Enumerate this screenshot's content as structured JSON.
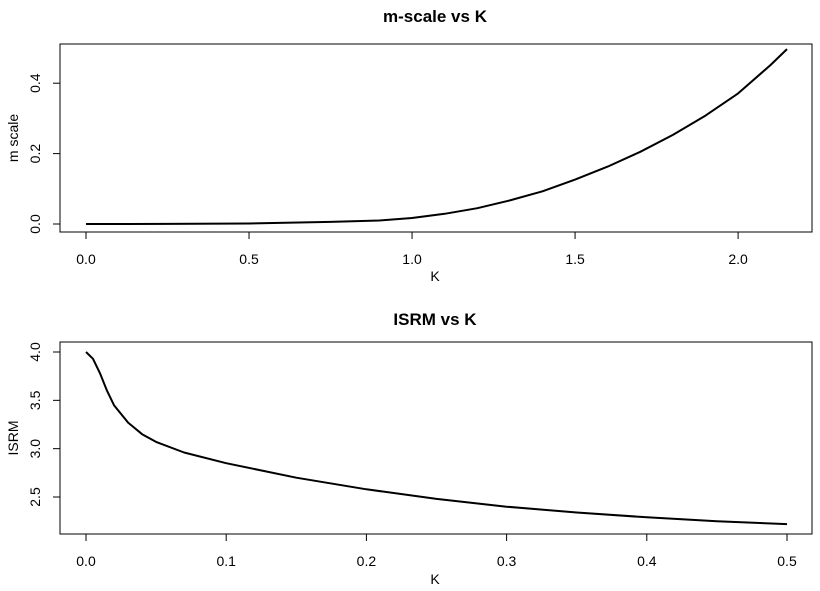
{
  "chart_data": [
    {
      "type": "line",
      "title": "m-scale vs K",
      "xlabel": "K",
      "ylabel": "m scale",
      "xlim": [
        0,
        2.15
      ],
      "ylim": [
        0,
        0.5
      ],
      "x_ticks": [
        "0.0",
        "0.5",
        "1.0",
        "1.5",
        "2.0"
      ],
      "y_ticks": [
        "0.0",
        "0.2",
        "0.4"
      ],
      "grid": false,
      "series": [
        {
          "x": [
            0,
            0.25,
            0.5,
            0.75,
            0.9,
            1.0,
            1.1,
            1.2,
            1.3,
            1.4,
            1.5,
            1.6,
            1.7,
            1.8,
            1.9,
            2.0,
            2.1,
            2.15
          ],
          "y": [
            0,
            0.0003,
            0.0013,
            0.006,
            0.01,
            0.017,
            0.029,
            0.045,
            0.067,
            0.093,
            0.126,
            0.163,
            0.205,
            0.253,
            0.308,
            0.371,
            0.452,
            0.497
          ]
        }
      ]
    },
    {
      "type": "line",
      "title": "ISRM vs K",
      "xlabel": "K",
      "ylabel": "ISRM",
      "xlim": [
        0,
        0.5
      ],
      "ylim": [
        2.2,
        4.0
      ],
      "x_ticks": [
        "0.0",
        "0.1",
        "0.2",
        "0.3",
        "0.4",
        "0.5"
      ],
      "y_ticks": [
        "2.5",
        "3.0",
        "3.5",
        "4.0"
      ],
      "grid": false,
      "series": [
        {
          "x": [
            0.0,
            0.005,
            0.01,
            0.015,
            0.02,
            0.03,
            0.04,
            0.05,
            0.07,
            0.1,
            0.15,
            0.2,
            0.25,
            0.3,
            0.35,
            0.4,
            0.45,
            0.5
          ],
          "y": [
            4.0,
            3.93,
            3.78,
            3.6,
            3.45,
            3.27,
            3.15,
            3.07,
            2.96,
            2.85,
            2.7,
            2.58,
            2.48,
            2.4,
            2.34,
            2.29,
            2.25,
            2.22
          ]
        }
      ]
    }
  ]
}
